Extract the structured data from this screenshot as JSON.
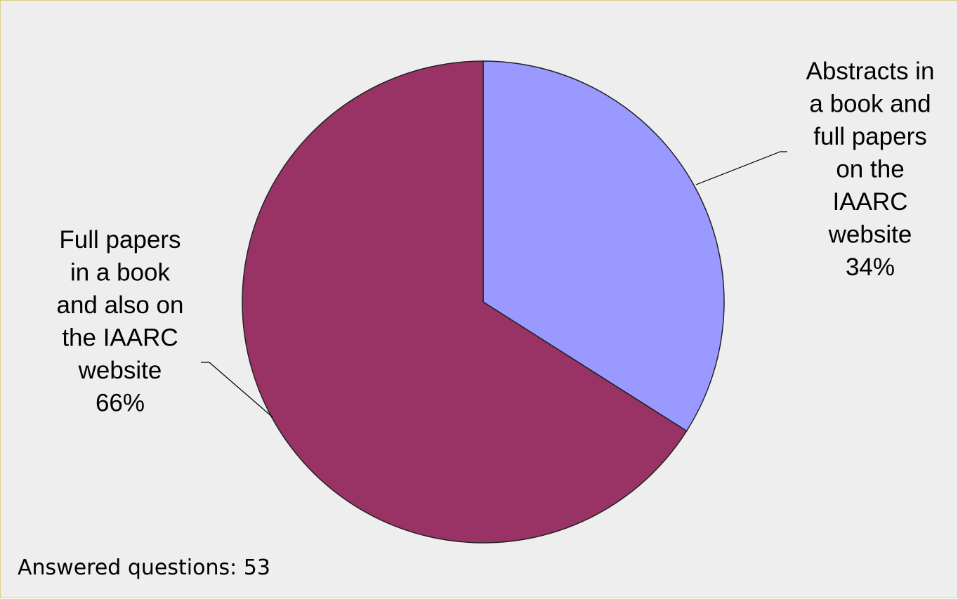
{
  "chart_data": {
    "type": "pie",
    "slices": [
      {
        "label_lines": [
          "Abstracts in",
          "a book and",
          "full papers",
          "on the",
          "IAARC",
          "website",
          "34%"
        ],
        "value": 34,
        "color": "#9999ff"
      },
      {
        "label_lines": [
          "Full papers",
          "in a book",
          "and also on",
          "the IAARC",
          "website",
          "66%"
        ],
        "value": 66,
        "color": "#993366"
      }
    ],
    "title": "",
    "legend": "none",
    "start_angle": "12 o'clock",
    "direction": "clockwise"
  },
  "footnote": "Answered questions: 53",
  "colors": {
    "background": "#eeeeee",
    "border": "#d8cf86",
    "slice_outline": "#222222"
  }
}
